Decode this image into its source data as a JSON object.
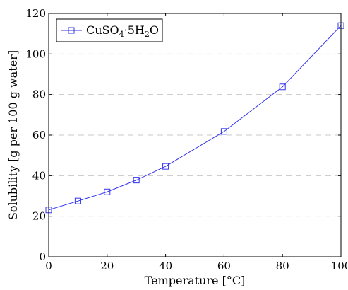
{
  "chart_data": {
    "type": "line",
    "title": "",
    "xlabel": "Temperature [°C]",
    "ylabel": "Solubility [g per 100 g water]",
    "xlim": [
      0,
      100
    ],
    "ylim": [
      0,
      120
    ],
    "xticks": [
      "0",
      "20",
      "40",
      "60",
      "80",
      "100"
    ],
    "yticks": [
      "0",
      "20",
      "40",
      "60",
      "80",
      "100",
      "120"
    ],
    "grid": "horizontal dashed",
    "legend_position": "top-left",
    "series": [
      {
        "name": "CuSO4·5H2O",
        "legend_parts": {
          "base": "CuSO",
          "sub1": "4",
          "mid": "·5H",
          "sub2": "2",
          "end": "O"
        },
        "marker": "square",
        "color": "#3333ee",
        "x": [
          0,
          10,
          20,
          30,
          40,
          60,
          80,
          100
        ],
        "y": [
          23.1,
          27.5,
          32.0,
          37.8,
          44.6,
          61.8,
          83.8,
          114.0
        ]
      }
    ]
  }
}
